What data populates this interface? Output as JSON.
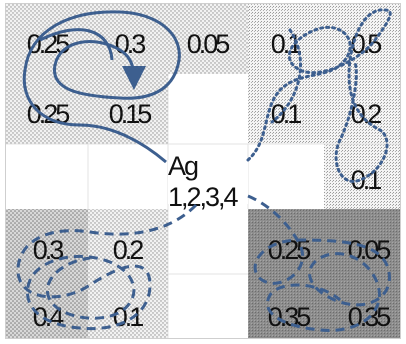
{
  "center_label": "Ag 1,2,3,4",
  "colors": {
    "arrow_color": "#3d5f8f",
    "light_pattern": "#bdbdbd",
    "dark_fill": "#8a8a8a"
  },
  "quadrants": {
    "top_left": {
      "values": [
        "0.25",
        "0.3",
        "0.25",
        "0.15"
      ],
      "extra": "0.05"
    },
    "top_right": {
      "values": [
        "0.1",
        "0.5",
        "0.1",
        "0.2",
        "0.1"
      ]
    },
    "bottom_left": {
      "values": [
        "0.3",
        "0.2",
        "0.4",
        "0.1"
      ]
    },
    "bottom_right": {
      "values": [
        "0.25",
        "0.05",
        "0.35",
        "0.35"
      ]
    }
  }
}
